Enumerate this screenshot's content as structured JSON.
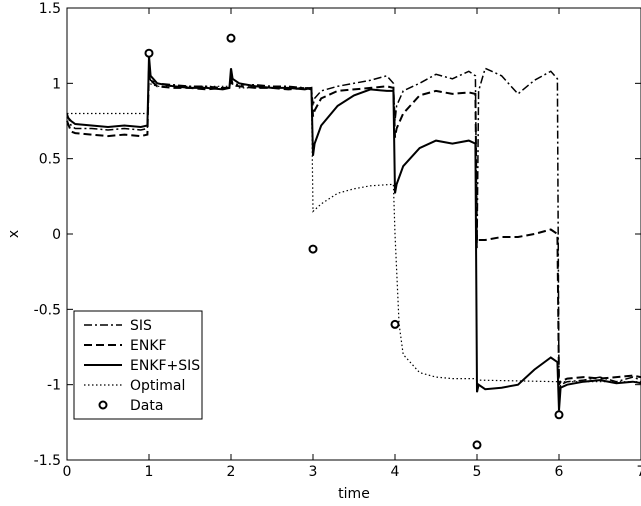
{
  "chart_data": {
    "type": "line",
    "title": "",
    "xlabel": "time",
    "ylabel": "x",
    "xlim": [
      0,
      7
    ],
    "ylim": [
      -1.5,
      1.5
    ],
    "xticks": [
      0,
      1,
      2,
      3,
      4,
      5,
      6,
      7
    ],
    "yticks": [
      -1.5,
      -1,
      -0.5,
      0,
      0.5,
      1,
      1.5
    ],
    "grid": false,
    "legend_position": "bottom-left",
    "series": [
      {
        "name": "SIS",
        "style": "dashdot",
        "color": "#000000",
        "x": [
          0,
          0.05,
          0.1,
          0.3,
          0.5,
          0.7,
          0.9,
          0.98,
          1.0,
          1.02,
          1.1,
          1.3,
          1.5,
          1.7,
          1.9,
          1.98,
          2.0,
          2.02,
          2.1,
          2.3,
          2.5,
          2.7,
          2.9,
          2.98,
          3.0,
          3.02,
          3.1,
          3.3,
          3.5,
          3.7,
          3.9,
          3.98,
          4.0,
          4.02,
          4.1,
          4.3,
          4.5,
          4.7,
          4.9,
          4.98,
          5.0,
          5.02,
          5.1,
          5.3,
          5.5,
          5.7,
          5.9,
          5.98,
          6.0,
          6.02,
          6.1,
          6.3,
          6.5,
          6.7,
          6.9,
          7.0
        ],
        "y": [
          0.8,
          0.72,
          0.7,
          0.7,
          0.69,
          0.7,
          0.69,
          0.7,
          1.05,
          1.02,
          1.0,
          0.99,
          0.98,
          0.98,
          0.97,
          0.97,
          1.05,
          1.0,
          0.99,
          0.99,
          0.98,
          0.98,
          0.97,
          0.97,
          0.85,
          0.9,
          0.95,
          0.98,
          1.0,
          1.02,
          1.05,
          1.0,
          0.75,
          0.85,
          0.95,
          1.0,
          1.06,
          1.03,
          1.08,
          1.05,
          -0.1,
          0.95,
          1.1,
          1.05,
          0.93,
          1.02,
          1.08,
          1.03,
          -1.05,
          -1.0,
          -0.98,
          -0.97,
          -0.95,
          -0.98,
          -0.95,
          -0.97
        ]
      },
      {
        "name": "ENKF",
        "style": "dashed",
        "color": "#000000",
        "x": [
          0,
          0.05,
          0.1,
          0.3,
          0.5,
          0.7,
          0.9,
          0.98,
          1.0,
          1.02,
          1.1,
          1.3,
          1.5,
          1.7,
          1.9,
          1.98,
          2.0,
          2.02,
          2.1,
          2.3,
          2.5,
          2.7,
          2.9,
          2.98,
          3.0,
          3.02,
          3.1,
          3.3,
          3.5,
          3.7,
          3.9,
          3.98,
          4.0,
          4.02,
          4.1,
          4.3,
          4.5,
          4.7,
          4.9,
          4.98,
          5.0,
          5.02,
          5.1,
          5.3,
          5.5,
          5.7,
          5.9,
          5.98,
          6.0,
          6.02,
          6.1,
          6.3,
          6.5,
          6.7,
          6.9,
          7.0
        ],
        "y": [
          0.75,
          0.68,
          0.67,
          0.66,
          0.65,
          0.66,
          0.65,
          0.66,
          1.1,
          1.02,
          0.98,
          0.97,
          0.97,
          0.96,
          0.97,
          0.97,
          1.02,
          0.99,
          0.98,
          0.97,
          0.97,
          0.96,
          0.97,
          0.96,
          0.78,
          0.82,
          0.9,
          0.95,
          0.96,
          0.97,
          0.98,
          0.97,
          0.64,
          0.7,
          0.8,
          0.92,
          0.95,
          0.93,
          0.94,
          0.93,
          -0.05,
          -0.04,
          -0.04,
          -0.02,
          -0.02,
          0.0,
          0.03,
          0.0,
          -1.0,
          -0.98,
          -0.96,
          -0.95,
          -0.96,
          -0.95,
          -0.94,
          -0.95
        ]
      },
      {
        "name": "ENKF+SIS",
        "style": "solid",
        "color": "#000000",
        "x": [
          0,
          0.05,
          0.1,
          0.3,
          0.5,
          0.7,
          0.9,
          0.98,
          1.0,
          1.02,
          1.1,
          1.3,
          1.5,
          1.7,
          1.9,
          1.98,
          2.0,
          2.02,
          2.1,
          2.3,
          2.5,
          2.7,
          2.9,
          2.98,
          3.0,
          3.02,
          3.1,
          3.3,
          3.5,
          3.7,
          3.9,
          3.98,
          4.0,
          4.02,
          4.1,
          4.3,
          4.5,
          4.7,
          4.9,
          4.98,
          5.0,
          5.02,
          5.1,
          5.3,
          5.5,
          5.7,
          5.9,
          5.98,
          6.0,
          6.02,
          6.1,
          6.3,
          6.5,
          6.7,
          6.9,
          7.0
        ],
        "y": [
          0.78,
          0.75,
          0.73,
          0.72,
          0.71,
          0.72,
          0.71,
          0.72,
          1.18,
          1.05,
          1.0,
          0.98,
          0.97,
          0.97,
          0.96,
          0.97,
          1.1,
          1.03,
          1.0,
          0.98,
          0.97,
          0.97,
          0.96,
          0.97,
          0.52,
          0.6,
          0.72,
          0.85,
          0.92,
          0.96,
          0.95,
          0.95,
          0.27,
          0.33,
          0.45,
          0.57,
          0.62,
          0.6,
          0.62,
          0.6,
          -1.05,
          -1.0,
          -1.03,
          -1.02,
          -1.0,
          -0.9,
          -0.82,
          -0.85,
          -1.17,
          -1.02,
          -1.0,
          -0.98,
          -0.97,
          -0.99,
          -0.98,
          -0.99
        ]
      },
      {
        "name": "Optimal",
        "style": "dotted",
        "color": "#000000",
        "x": [
          0,
          0.98,
          1.0,
          1.1,
          1.98,
          2.0,
          2.1,
          2.98,
          3.0,
          3.1,
          3.3,
          3.5,
          3.7,
          3.98,
          4.0,
          4.05,
          4.1,
          4.3,
          4.5,
          4.7,
          4.98,
          5.0,
          6.0,
          7.0
        ],
        "y": [
          0.8,
          0.8,
          1.0,
          0.98,
          0.98,
          1.0,
          0.97,
          0.97,
          0.15,
          0.2,
          0.27,
          0.3,
          0.32,
          0.33,
          0.0,
          -0.6,
          -0.8,
          -0.92,
          -0.95,
          -0.96,
          -0.96,
          -0.97,
          -0.98,
          -0.98
        ]
      }
    ],
    "data_points": {
      "name": "Data",
      "marker": "circle",
      "x": [
        1,
        2,
        3,
        4,
        5,
        6
      ],
      "y": [
        1.2,
        1.3,
        -0.1,
        -0.6,
        -1.4,
        -1.2
      ]
    }
  }
}
